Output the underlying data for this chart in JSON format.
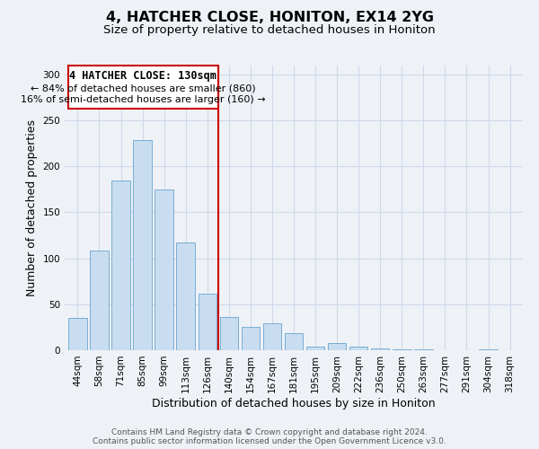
{
  "title": "4, HATCHER CLOSE, HONITON, EX14 2YG",
  "subtitle": "Size of property relative to detached houses in Honiton",
  "xlabel": "Distribution of detached houses by size in Honiton",
  "ylabel": "Number of detached properties",
  "bar_color": "#c8ddf0",
  "bar_edge_color": "#7aadd4",
  "categories": [
    "44sqm",
    "58sqm",
    "71sqm",
    "85sqm",
    "99sqm",
    "113sqm",
    "126sqm",
    "140sqm",
    "154sqm",
    "167sqm",
    "181sqm",
    "195sqm",
    "209sqm",
    "222sqm",
    "236sqm",
    "250sqm",
    "263sqm",
    "277sqm",
    "291sqm",
    "304sqm",
    "318sqm"
  ],
  "values": [
    35,
    108,
    185,
    228,
    175,
    117,
    62,
    36,
    25,
    29,
    19,
    4,
    8,
    4,
    2,
    1,
    1,
    0,
    0,
    1,
    0
  ],
  "ylim": [
    0,
    310
  ],
  "yticks": [
    0,
    50,
    100,
    150,
    200,
    250,
    300
  ],
  "property_line_index": 6,
  "property_line_label": "4 HATCHER CLOSE: 130sqm",
  "annotation_smaller": "← 84% of detached houses are smaller (860)",
  "annotation_larger": "16% of semi-detached houses are larger (160) →",
  "footer_line1": "Contains HM Land Registry data © Crown copyright and database right 2024.",
  "footer_line2": "Contains public sector information licensed under the Open Government Licence v3.0.",
  "background_color": "#eef2f7",
  "plot_bg_color": "#eef2f7",
  "grid_color": "#d0d8e8",
  "annotation_box_edge": "#cc0000",
  "property_line_color": "#cc0000",
  "title_fontsize": 11.5,
  "subtitle_fontsize": 9.5,
  "axis_label_fontsize": 9,
  "tick_fontsize": 7.5,
  "annotation_fontsize": 8.5,
  "footer_fontsize": 6.5
}
